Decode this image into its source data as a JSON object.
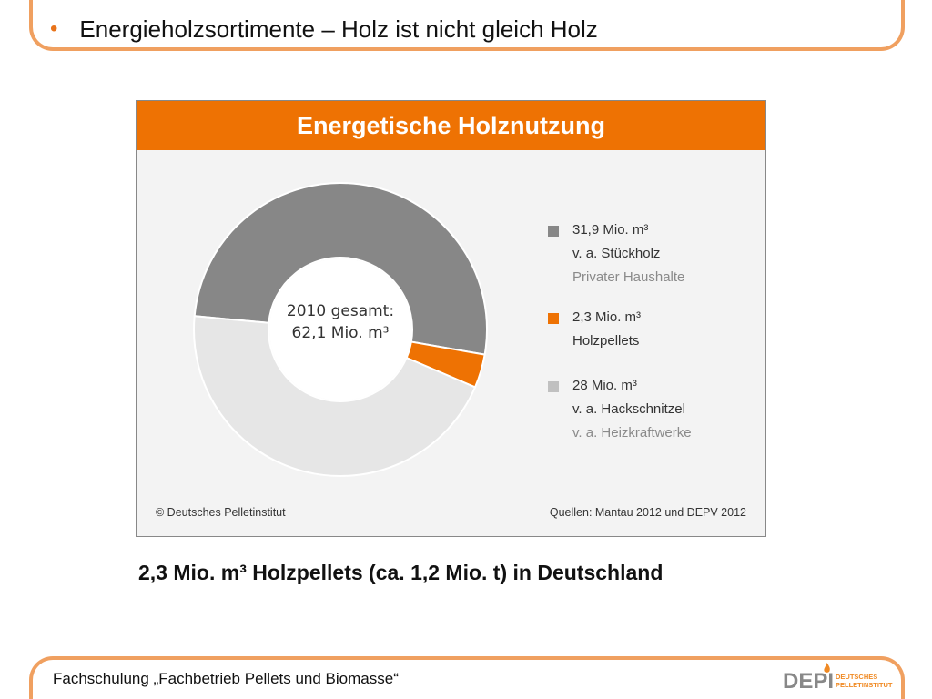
{
  "slide": {
    "bullet": "•",
    "heading": "Energieholzsortimente – Holz ist nicht gleich Holz",
    "caption": "2,3 Mio. m³ Holzpellets (ca. 1,2 Mio. t) in Deutschland",
    "footer": "Fachschulung „Fachbetrieb Pellets und Biomasse“",
    "logo": {
      "mark": "DEPI",
      "line1": "DEUTSCHES",
      "line2": "PELLETINSTITUT"
    }
  },
  "colors": {
    "accent_orange": "#ee7203",
    "frame_orange": "#f0a060",
    "dark_gray": "#878787",
    "light_gray": "#e6e6e6"
  },
  "figure": {
    "copyright": "© Deutsches Pelletinstitut",
    "sources": "Quellen: Mantau 2012 und DEPV 2012"
  },
  "chart_data": {
    "type": "pie",
    "title": "Energetische Holznutzung",
    "center_label_line1": "2010 gesamt:",
    "center_label_line2": "62,1 Mio. m³",
    "unit": "Mio. m³",
    "slices": [
      {
        "value": 31.9,
        "label_value": "31,9 Mio. m³",
        "label_line2": "v. a. Stückholz",
        "label_line3": "Privater Haushalte",
        "color": "#878787"
      },
      {
        "value": 2.3,
        "label_value": "2,3 Mio. m³",
        "label_line2": "Holzpellets",
        "label_line3": "",
        "color": "#ee7203"
      },
      {
        "value": 28,
        "label_value": "28 Mio. m³",
        "label_line2": "v. a. Hackschnitzel",
        "label_line3": "v. a. Heizkraftwerke",
        "color": "#e6e6e6"
      }
    ],
    "legend_position": "right"
  }
}
